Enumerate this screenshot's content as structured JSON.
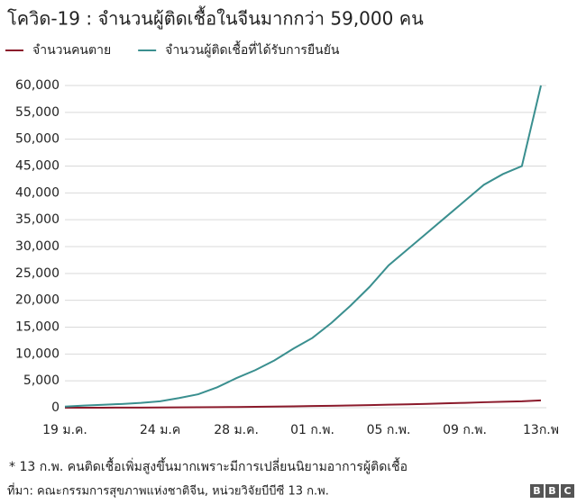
{
  "chart_data": {
    "type": "line",
    "title": "โควิด-19 : จำนวนผู้ติดเชื้อในจีนมากกว่า 59,000 คน",
    "categories": [
      "19 ม.ค.",
      null,
      null,
      null,
      null,
      "24 ม.ค",
      null,
      null,
      null,
      "28 ม.ค.",
      null,
      null,
      null,
      "01 ก.พ.",
      null,
      null,
      null,
      "05 ก.พ.",
      null,
      null,
      null,
      "09 ก.พ.",
      null,
      null,
      null,
      "13ก.พ"
    ],
    "series": [
      {
        "name": "จำนวนคนตาย",
        "color": "#8b1a2b",
        "values": [
          3,
          6,
          9,
          17,
          25,
          41,
          56,
          80,
          106,
          132,
          170,
          213,
          259,
          304,
          361,
          425,
          490,
          563,
          636,
          722,
          811,
          908,
          1016,
          1113,
          1200,
          1370
        ]
      },
      {
        "name": "จำนวนผู้ติดเชื้อที่ได้รับการยืนยัน",
        "color": "#3a8f8f",
        "values": [
          200,
          400,
          550,
          700,
          900,
          1200,
          1800,
          2500,
          3800,
          5500,
          7000,
          8800,
          11000,
          13000,
          15800,
          19000,
          22500,
          26500,
          29500,
          32500,
          35500,
          38500,
          41500,
          43500,
          45000,
          60000
        ]
      }
    ],
    "ylim": [
      0,
      60000
    ],
    "yticks": [
      0,
      {
        "value": 5000,
        "label": "5,000"
      },
      {
        "value": 10000,
        "label": "10,000"
      },
      {
        "value": 15000,
        "label": "15,000"
      },
      {
        "value": 20000,
        "label": "20,000"
      },
      {
        "value": 25000,
        "label": "25,000"
      },
      {
        "value": 30000,
        "label": "30,000"
      },
      {
        "value": 35000,
        "label": "35,000"
      },
      {
        "value": 40000,
        "label": "40,000"
      },
      {
        "value": 45000,
        "label": "45,000"
      },
      {
        "value": 50000,
        "label": "50,000"
      },
      {
        "value": 55000,
        "label": "55,000"
      },
      {
        "value": 60000,
        "label": "60,000"
      }
    ],
    "grid": true,
    "note": "* 13 ก.พ. คนติดเชื้อเพิ่มสูงขึ้นมากเพราะมีการเปลี่ยนนิยามอาการผู้ติดเชื้อ",
    "source": "ที่มา: คณะกรรมการสุขภาพแห่งชาติจีน, หน่วยวิจัยบีบีซี 13 ก.พ.",
    "logo": [
      "B",
      "B",
      "C"
    ]
  }
}
